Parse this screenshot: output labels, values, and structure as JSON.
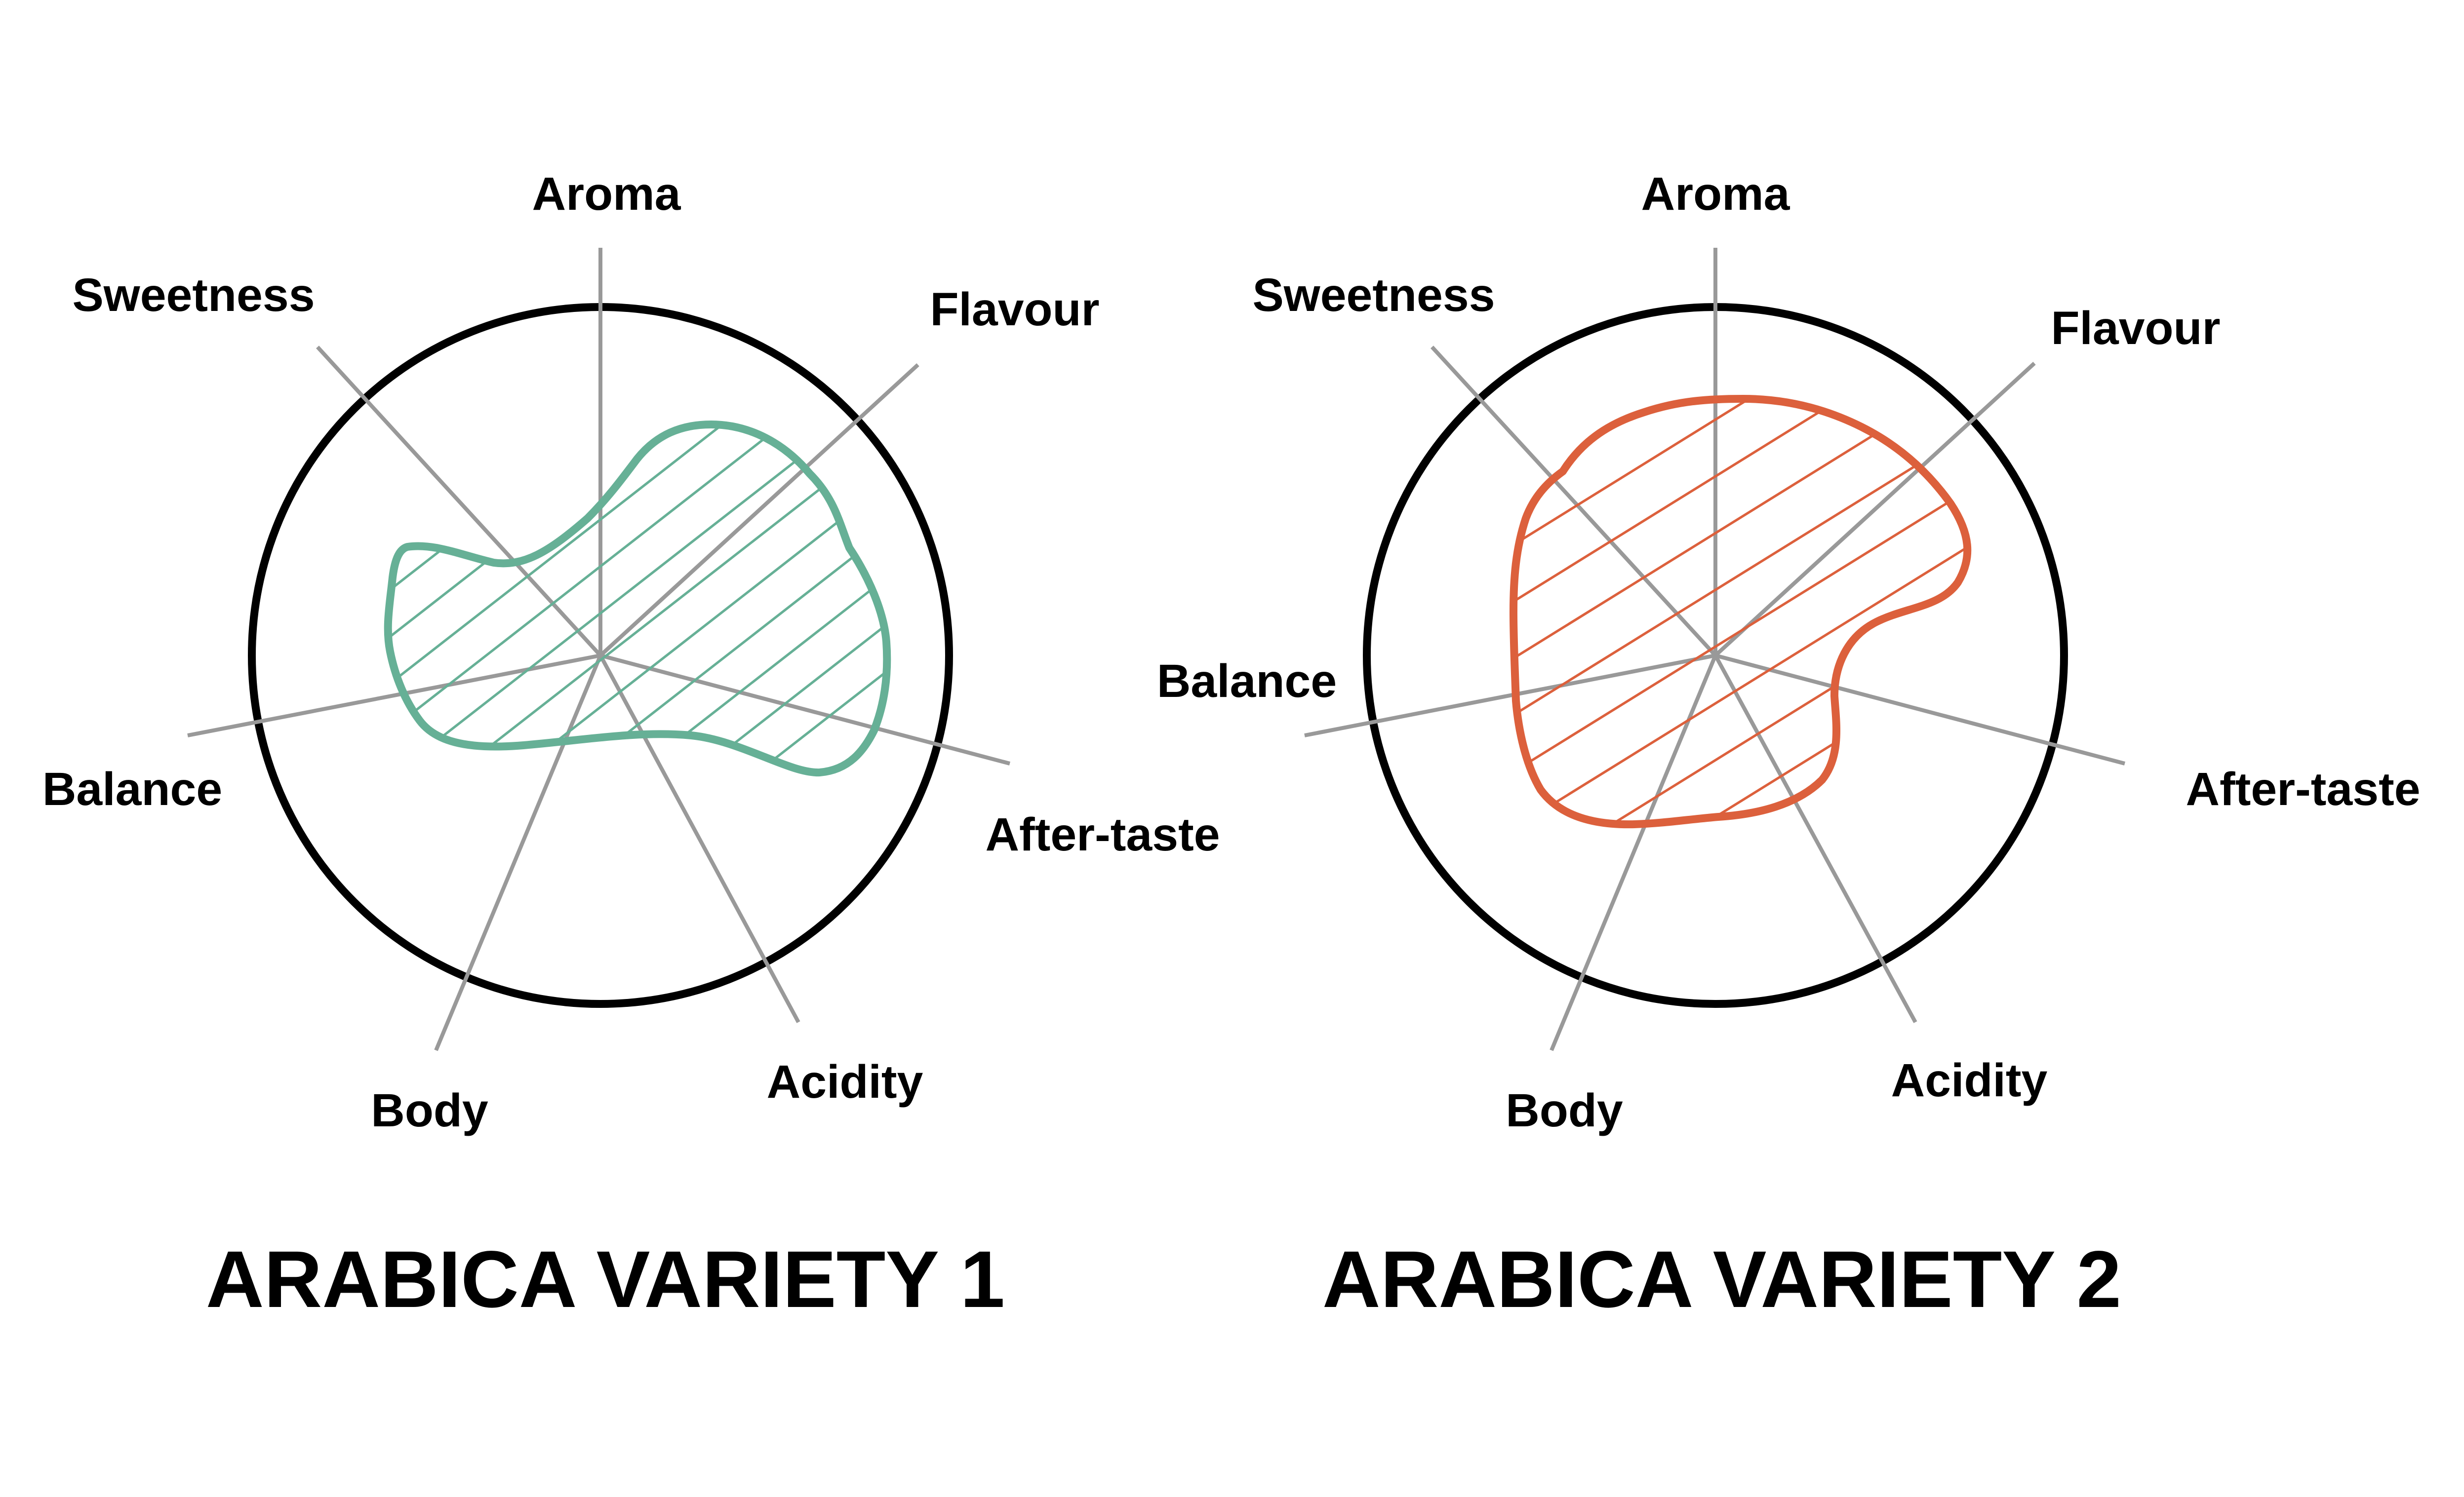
{
  "colors": {
    "axis": "#999999",
    "ring": "#000000",
    "variety_1": "#66b096",
    "variety_2": "#dc603c"
  },
  "diagrams": [
    {
      "title": "ARABICA VARIETY 1",
      "color_key": "variety_1",
      "axes": [
        {
          "id": "aroma",
          "label": "Aroma"
        },
        {
          "id": "flavour",
          "label": "Flavour"
        },
        {
          "id": "after-taste",
          "label": "After-taste"
        },
        {
          "id": "acidity",
          "label": "Acidity"
        },
        {
          "id": "body",
          "label": "Body"
        },
        {
          "id": "balance",
          "label": "Balance"
        },
        {
          "id": "sweetness",
          "label": "Sweetness"
        }
      ]
    },
    {
      "title": "ARABICA VARIETY  2",
      "color_key": "variety_2",
      "axes": [
        {
          "id": "aroma",
          "label": "Aroma"
        },
        {
          "id": "flavour",
          "label": "Flavour"
        },
        {
          "id": "after-taste",
          "label": "After-taste"
        },
        {
          "id": "acidity",
          "label": "Acidity"
        },
        {
          "id": "body",
          "label": "Body"
        },
        {
          "id": "balance",
          "label": "Balance"
        },
        {
          "id": "sweetness",
          "label": "Sweetness"
        }
      ]
    }
  ]
}
